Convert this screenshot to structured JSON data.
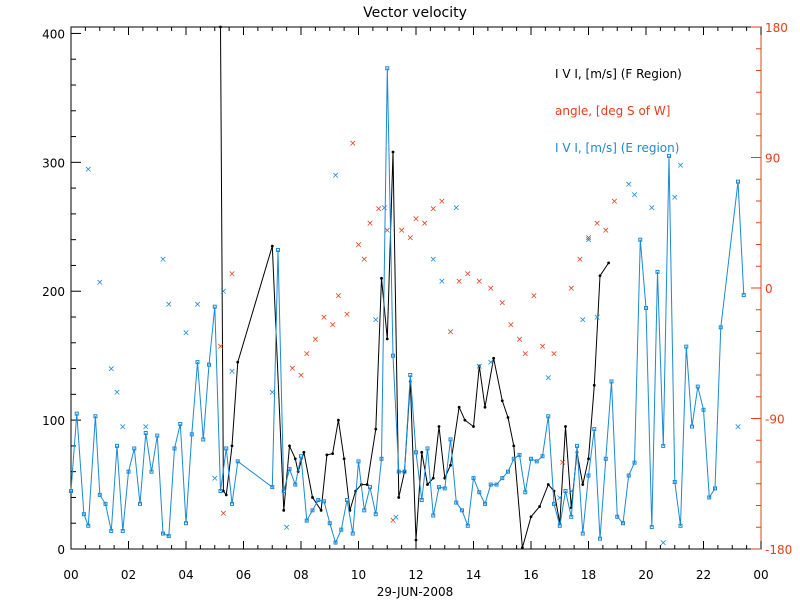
{
  "chart_data": {
    "type": "line",
    "title": "Vector velocity",
    "xlabel": "29-JUN-2008",
    "xticks": [
      "00",
      "02",
      "04",
      "06",
      "08",
      "10",
      "12",
      "14",
      "16",
      "18",
      "20",
      "22",
      "00"
    ],
    "xlim": [
      0,
      24
    ],
    "ylim": [
      0,
      405
    ],
    "y2lim": [
      -180,
      180
    ],
    "yticks": [
      "0",
      "100",
      "200",
      "300",
      "400"
    ],
    "y2ticks": [
      "-180",
      "-90",
      "0",
      "90",
      "180"
    ],
    "legend": [
      "I V I, [m/s] (F Region)",
      "angle, [deg S of W]",
      "I V I, [m/s] (E region)"
    ],
    "legend_position": "top-right",
    "colors": {
      "f_region": "#000000",
      "angle": "#e0401a",
      "e_region": "#1a8ad6",
      "axis_right": "#e0401a"
    },
    "series": [
      {
        "name": "I V I, [m/s] (F Region)",
        "axis": "left",
        "marker": "dot",
        "color": "#000000",
        "points": [
          [
            5.2,
            405
          ],
          [
            5.3,
            45
          ],
          [
            5.4,
            42
          ],
          [
            5.6,
            80
          ],
          [
            5.8,
            145
          ],
          [
            7.0,
            235
          ],
          [
            7.4,
            30
          ],
          [
            7.6,
            80
          ],
          [
            7.8,
            70
          ],
          [
            7.9,
            60
          ],
          [
            8.1,
            75
          ],
          [
            8.4,
            40
          ],
          [
            8.7,
            30
          ],
          [
            8.9,
            73
          ],
          [
            9.1,
            74
          ],
          [
            9.3,
            100
          ],
          [
            9.5,
            70
          ],
          [
            9.7,
            30
          ],
          [
            9.9,
            45
          ],
          [
            10.1,
            50
          ],
          [
            10.3,
            50
          ],
          [
            10.6,
            93
          ],
          [
            10.8,
            210
          ],
          [
            11.0,
            163
          ],
          [
            11.2,
            308
          ],
          [
            11.4,
            40
          ],
          [
            11.6,
            60
          ],
          [
            11.8,
            130
          ],
          [
            12.0,
            7
          ],
          [
            12.2,
            75
          ],
          [
            12.4,
            50
          ],
          [
            12.6,
            55
          ],
          [
            12.8,
            95
          ],
          [
            13.0,
            55
          ],
          [
            13.2,
            65
          ],
          [
            13.5,
            110
          ],
          [
            13.7,
            100
          ],
          [
            14.0,
            95
          ],
          [
            14.2,
            142
          ],
          [
            14.4,
            110
          ],
          [
            14.7,
            148
          ],
          [
            15.0,
            115
          ],
          [
            15.2,
            102
          ],
          [
            15.4,
            80
          ],
          [
            15.7,
            1
          ],
          [
            16.0,
            25
          ],
          [
            16.3,
            33
          ],
          [
            16.6,
            50
          ],
          [
            16.8,
            45
          ],
          [
            17.0,
            20
          ],
          [
            17.2,
            95
          ],
          [
            17.4,
            32
          ],
          [
            17.6,
            75
          ],
          [
            17.8,
            50
          ],
          [
            18.0,
            70
          ],
          [
            18.2,
            127
          ],
          [
            18.4,
            212
          ],
          [
            18.7,
            222
          ]
        ]
      },
      {
        "name": "angle, [deg S of W]",
        "axis": "right",
        "marker": "x",
        "color": "#e0401a",
        "points": [
          [
            5.3,
            -155
          ],
          [
            5.6,
            10
          ],
          [
            5.2,
            -40
          ],
          [
            7.7,
            -55
          ],
          [
            8.0,
            -60
          ],
          [
            8.2,
            -45
          ],
          [
            8.5,
            -35
          ],
          [
            8.8,
            -20
          ],
          [
            9.1,
            -25
          ],
          [
            9.3,
            -5
          ],
          [
            9.6,
            -18
          ],
          [
            9.8,
            100
          ],
          [
            10.0,
            30
          ],
          [
            10.2,
            20
          ],
          [
            10.4,
            45
          ],
          [
            10.7,
            55
          ],
          [
            11.0,
            40
          ],
          [
            11.2,
            -160
          ],
          [
            11.5,
            40
          ],
          [
            11.8,
            35
          ],
          [
            12.0,
            48
          ],
          [
            12.3,
            45
          ],
          [
            12.6,
            55
          ],
          [
            12.9,
            60
          ],
          [
            13.2,
            -30
          ],
          [
            13.5,
            5
          ],
          [
            13.8,
            10
          ],
          [
            14.2,
            5
          ],
          [
            14.6,
            0
          ],
          [
            15.0,
            -10
          ],
          [
            15.3,
            -25
          ],
          [
            15.6,
            -35
          ],
          [
            15.8,
            -45
          ],
          [
            16.1,
            -5
          ],
          [
            16.4,
            -40
          ],
          [
            16.8,
            -45
          ],
          [
            17.1,
            -120
          ],
          [
            17.4,
            0
          ],
          [
            17.7,
            20
          ],
          [
            18.0,
            35
          ],
          [
            18.3,
            45
          ],
          [
            18.6,
            40
          ],
          [
            18.9,
            60
          ]
        ]
      },
      {
        "name": "I V I, [m/s] (E region)",
        "axis": "left",
        "marker": "square",
        "color": "#1a8ad6",
        "points": [
          [
            0.0,
            45
          ],
          [
            0.2,
            105
          ],
          [
            0.45,
            27
          ],
          [
            0.6,
            18
          ],
          [
            0.85,
            103
          ],
          [
            1.0,
            42
          ],
          [
            1.2,
            35
          ],
          [
            1.4,
            14
          ],
          [
            1.6,
            80
          ],
          [
            1.8,
            14
          ],
          [
            2.0,
            60
          ],
          [
            2.2,
            78
          ],
          [
            2.4,
            35
          ],
          [
            2.6,
            90
          ],
          [
            2.8,
            60
          ],
          [
            3.0,
            88
          ],
          [
            3.2,
            12
          ],
          [
            3.4,
            10
          ],
          [
            3.6,
            78
          ],
          [
            3.8,
            97
          ],
          [
            4.0,
            20
          ],
          [
            4.2,
            89
          ],
          [
            4.4,
            145
          ],
          [
            4.6,
            85
          ],
          [
            4.8,
            143
          ],
          [
            5.0,
            188
          ],
          [
            5.2,
            45
          ],
          [
            5.4,
            78
          ],
          [
            5.6,
            35
          ],
          [
            5.8,
            68
          ],
          [
            7.0,
            48
          ],
          [
            7.2,
            232
          ],
          [
            7.4,
            45
          ],
          [
            7.6,
            62
          ],
          [
            7.8,
            50
          ],
          [
            8.0,
            72
          ],
          [
            8.2,
            22
          ],
          [
            8.4,
            30
          ],
          [
            8.6,
            38
          ],
          [
            8.8,
            37
          ],
          [
            9.0,
            20
          ],
          [
            9.2,
            5
          ],
          [
            9.4,
            15
          ],
          [
            9.6,
            38
          ],
          [
            9.8,
            12
          ],
          [
            10.0,
            68
          ],
          [
            10.2,
            30
          ],
          [
            10.4,
            48
          ],
          [
            10.6,
            27
          ],
          [
            10.8,
            70
          ],
          [
            11.0,
            373
          ],
          [
            11.2,
            150
          ],
          [
            11.4,
            60
          ],
          [
            11.6,
            60
          ],
          [
            11.8,
            135
          ],
          [
            12.0,
            75
          ],
          [
            12.2,
            38
          ],
          [
            12.4,
            78
          ],
          [
            12.6,
            26
          ],
          [
            12.8,
            48
          ],
          [
            13.0,
            47
          ],
          [
            13.2,
            85
          ],
          [
            13.4,
            36
          ],
          [
            13.6,
            30
          ],
          [
            13.8,
            18
          ],
          [
            14.0,
            55
          ],
          [
            14.2,
            44
          ],
          [
            14.4,
            35
          ],
          [
            14.6,
            50
          ],
          [
            14.8,
            50
          ],
          [
            15.0,
            55
          ],
          [
            15.2,
            60
          ],
          [
            15.4,
            70
          ],
          [
            15.6,
            73
          ],
          [
            15.8,
            44
          ],
          [
            16.0,
            70
          ],
          [
            16.2,
            68
          ],
          [
            16.4,
            72
          ],
          [
            16.6,
            103
          ],
          [
            16.8,
            35
          ],
          [
            17.0,
            18
          ],
          [
            17.2,
            45
          ],
          [
            17.4,
            25
          ],
          [
            17.6,
            80
          ],
          [
            17.8,
            12
          ],
          [
            18.0,
            57
          ],
          [
            18.2,
            93
          ],
          [
            18.4,
            8
          ],
          [
            18.6,
            70
          ],
          [
            18.8,
            130
          ],
          [
            19.0,
            25
          ],
          [
            19.2,
            20
          ],
          [
            19.4,
            57
          ],
          [
            19.6,
            67
          ],
          [
            19.8,
            240
          ],
          [
            20.0,
            187
          ],
          [
            20.2,
            17
          ],
          [
            20.4,
            215
          ],
          [
            20.6,
            80
          ],
          [
            20.8,
            305
          ],
          [
            21.0,
            52
          ],
          [
            21.2,
            18
          ],
          [
            21.4,
            157
          ],
          [
            21.6,
            95
          ],
          [
            21.8,
            126
          ],
          [
            22.0,
            108
          ],
          [
            22.2,
            40
          ],
          [
            22.4,
            47
          ],
          [
            22.6,
            172
          ],
          [
            23.2,
            285
          ],
          [
            23.4,
            197
          ]
        ]
      },
      {
        "name": "",
        "axis": "left",
        "marker": "x",
        "color": "#1a8ad6",
        "points": [
          [
            0.6,
            295
          ],
          [
            1.0,
            207
          ],
          [
            1.4,
            140
          ],
          [
            1.6,
            122
          ],
          [
            1.8,
            95
          ],
          [
            2.6,
            95
          ],
          [
            3.2,
            225
          ],
          [
            3.4,
            190
          ],
          [
            4.0,
            168
          ],
          [
            4.4,
            190
          ],
          [
            5.0,
            55
          ],
          [
            5.3,
            200
          ],
          [
            5.6,
            138
          ],
          [
            7.0,
            122
          ],
          [
            7.5,
            17
          ],
          [
            9.2,
            290
          ],
          [
            10.6,
            178
          ],
          [
            10.9,
            265
          ],
          [
            11.3,
            25
          ],
          [
            12.6,
            225
          ],
          [
            12.9,
            208
          ],
          [
            13.4,
            265
          ],
          [
            14.2,
            142
          ],
          [
            14.6,
            145
          ],
          [
            16.6,
            133
          ],
          [
            17.0,
            40
          ],
          [
            17.4,
            45
          ],
          [
            17.8,
            178
          ],
          [
            18.0,
            240
          ],
          [
            18.3,
            180
          ],
          [
            19.4,
            283
          ],
          [
            19.6,
            275
          ],
          [
            20.2,
            265
          ],
          [
            20.6,
            5
          ],
          [
            21.0,
            273
          ],
          [
            21.2,
            298
          ],
          [
            23.2,
            95
          ]
        ]
      }
    ]
  }
}
